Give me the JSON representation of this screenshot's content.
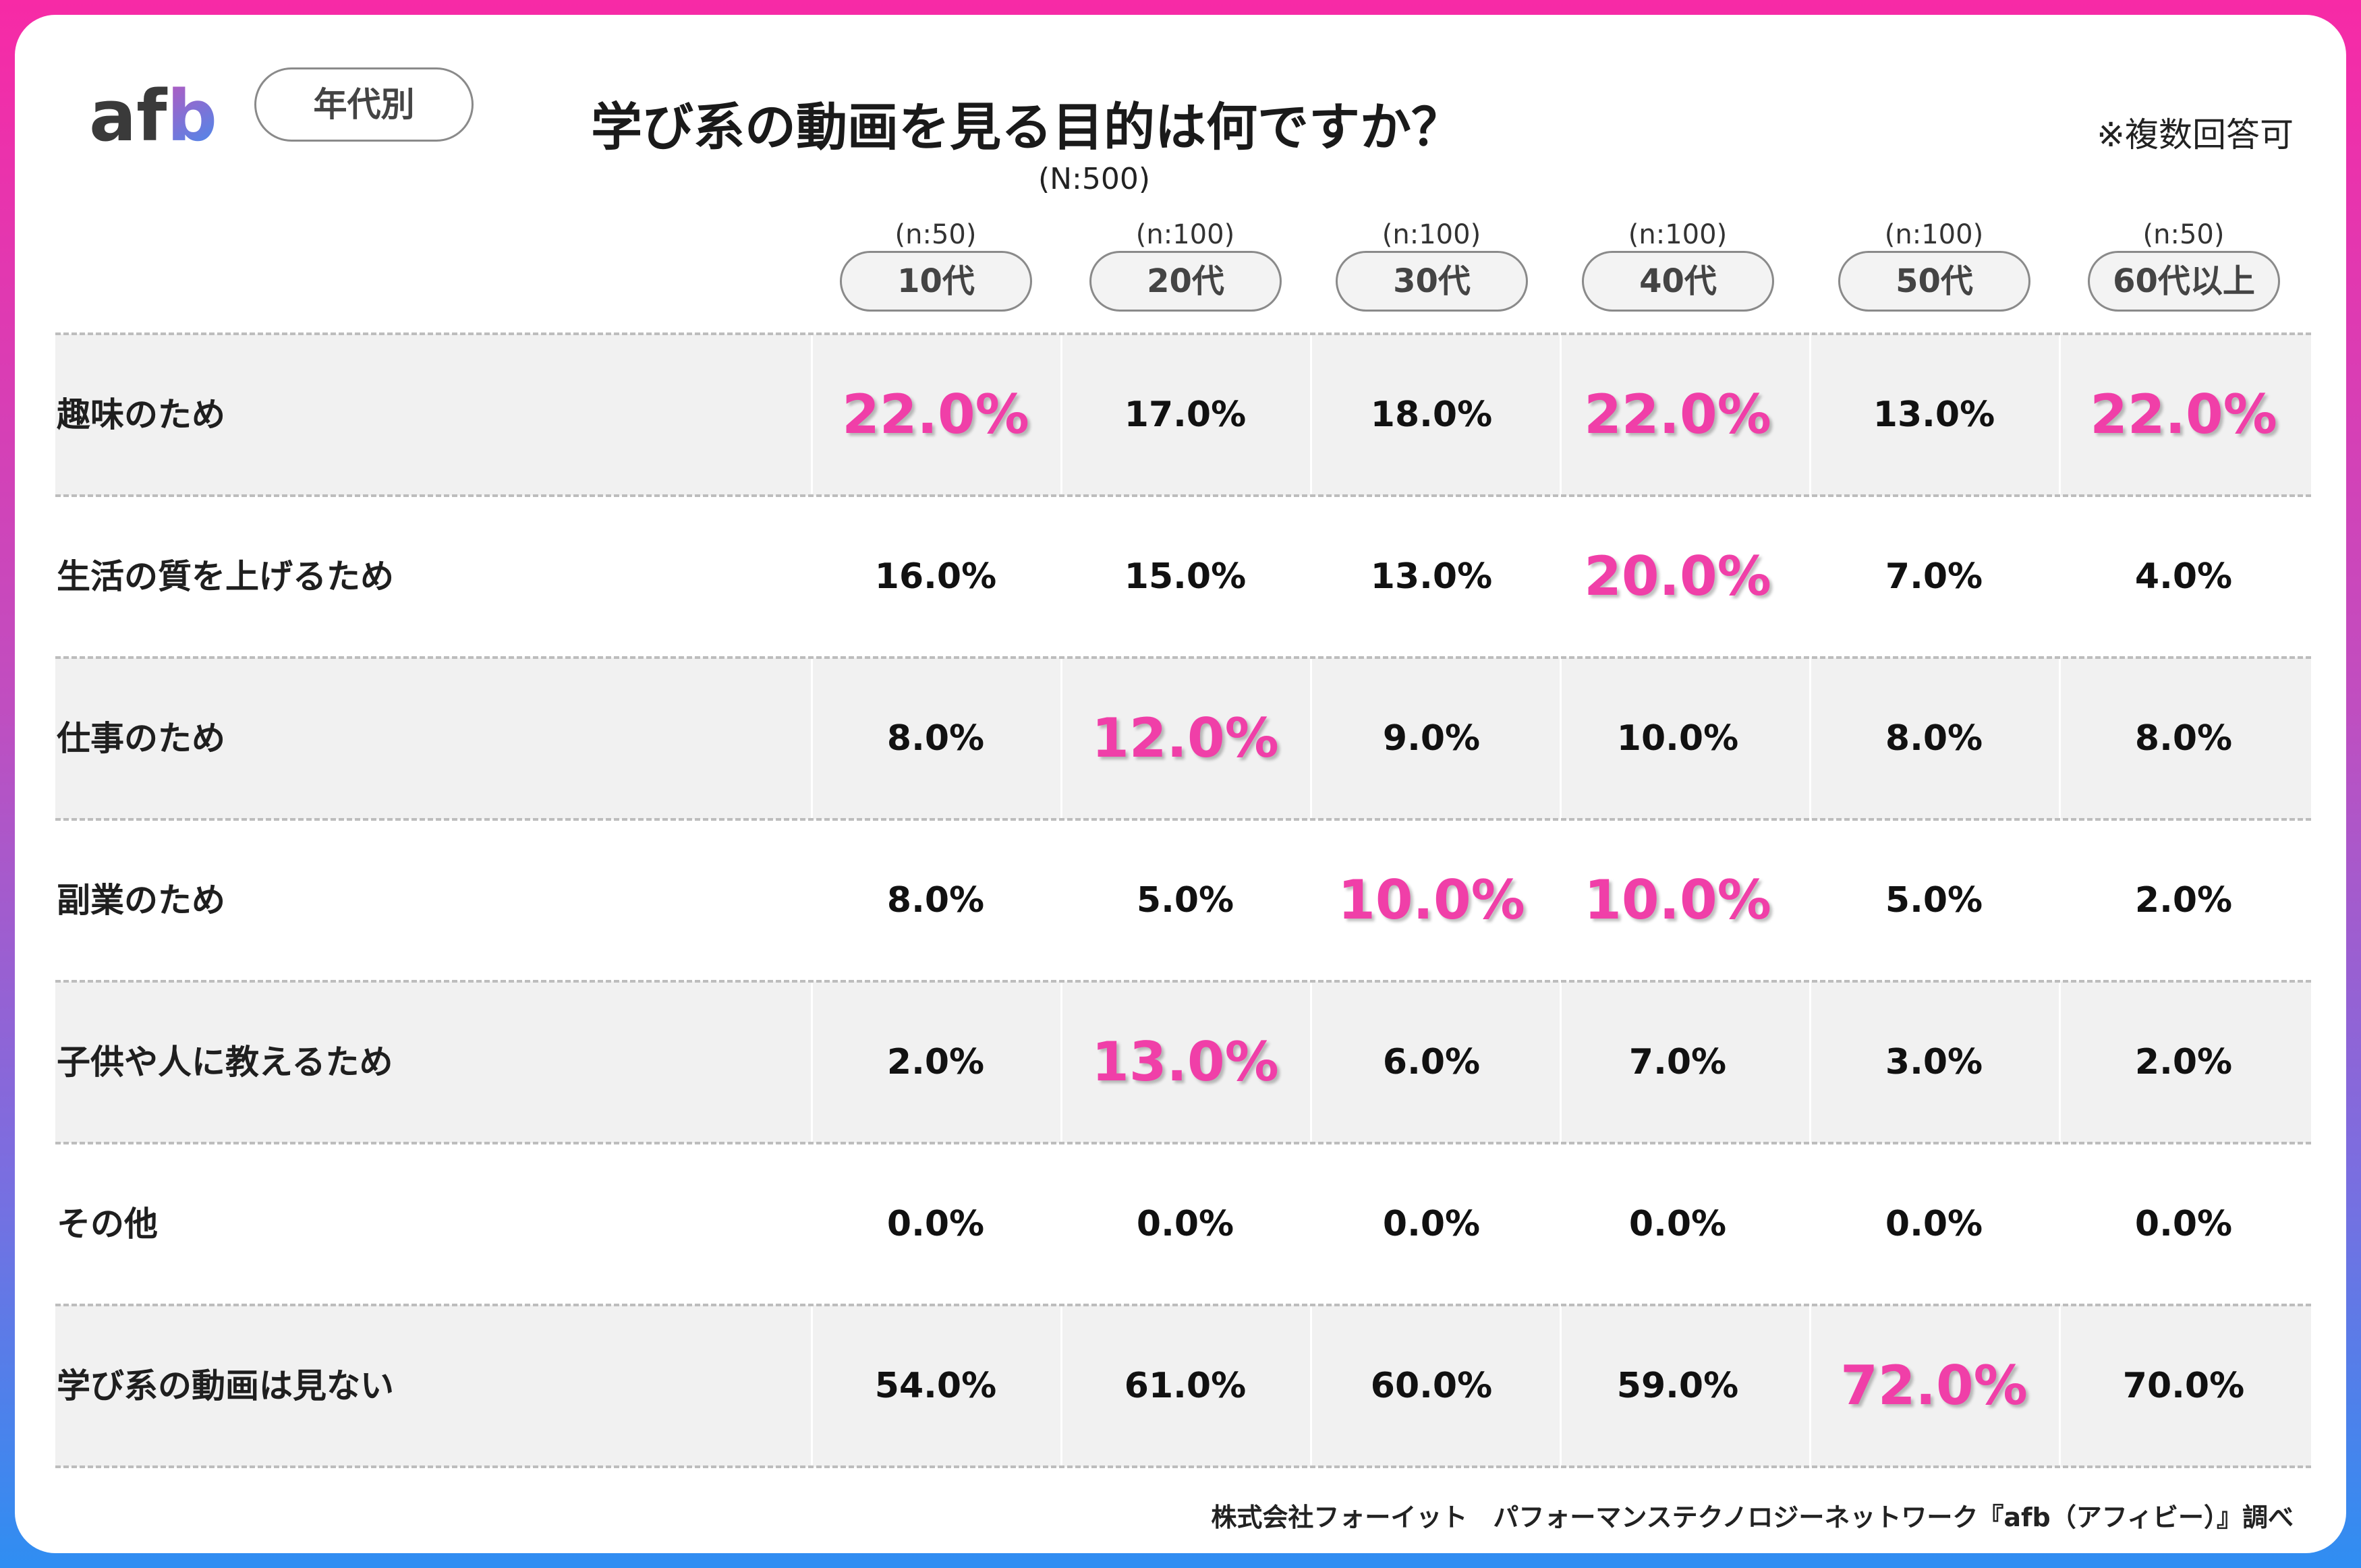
{
  "brand": {
    "logo_text": "afb"
  },
  "category_label": "年代別",
  "chart_data": {
    "type": "table",
    "title": "学び系の動画を見る目的は何ですか？",
    "total_n": "(N:500)",
    "note": "※複数回答可",
    "columns": [
      {
        "label": "10代",
        "n": "(n:50)"
      },
      {
        "label": "20代",
        "n": "(n:100)"
      },
      {
        "label": "30代",
        "n": "(n:100)"
      },
      {
        "label": "40代",
        "n": "(n:100)"
      },
      {
        "label": "50代",
        "n": "(n:100)"
      },
      {
        "label": "60代以上",
        "n": "(n:50)"
      }
    ],
    "rows": [
      {
        "label": "趣味のため",
        "values": [
          "22.0%",
          "17.0%",
          "18.0%",
          "22.0%",
          "13.0%",
          "22.0%"
        ],
        "highlight": [
          true,
          false,
          false,
          true,
          false,
          true
        ]
      },
      {
        "label": "生活の質を上げるため",
        "values": [
          "16.0%",
          "15.0%",
          "13.0%",
          "20.0%",
          "7.0%",
          "4.0%"
        ],
        "highlight": [
          false,
          false,
          false,
          true,
          false,
          false
        ]
      },
      {
        "label": "仕事のため",
        "values": [
          "8.0%",
          "12.0%",
          "9.0%",
          "10.0%",
          "8.0%",
          "8.0%"
        ],
        "highlight": [
          false,
          true,
          false,
          false,
          false,
          false
        ]
      },
      {
        "label": "副業のため",
        "values": [
          "8.0%",
          "5.0%",
          "10.0%",
          "10.0%",
          "5.0%",
          "2.0%"
        ],
        "highlight": [
          false,
          false,
          true,
          true,
          false,
          false
        ]
      },
      {
        "label": "子供や人に教えるため",
        "values": [
          "2.0%",
          "13.0%",
          "6.0%",
          "7.0%",
          "3.0%",
          "2.0%"
        ],
        "highlight": [
          false,
          true,
          false,
          false,
          false,
          false
        ]
      },
      {
        "label": "その他",
        "values": [
          "0.0%",
          "0.0%",
          "0.0%",
          "0.0%",
          "0.0%",
          "0.0%"
        ],
        "highlight": [
          false,
          false,
          false,
          false,
          false,
          false
        ]
      },
      {
        "label": "学び系の動画は見ない",
        "values": [
          "54.0%",
          "61.0%",
          "60.0%",
          "59.0%",
          "72.0%",
          "70.0%"
        ],
        "highlight": [
          false,
          false,
          false,
          false,
          true,
          false
        ]
      }
    ],
    "highlight_color": "#f03fa8"
  },
  "footer": "株式会社フォーイット　パフォーマンステクノロジーネットワーク『afb（アフィビー）』調べ"
}
